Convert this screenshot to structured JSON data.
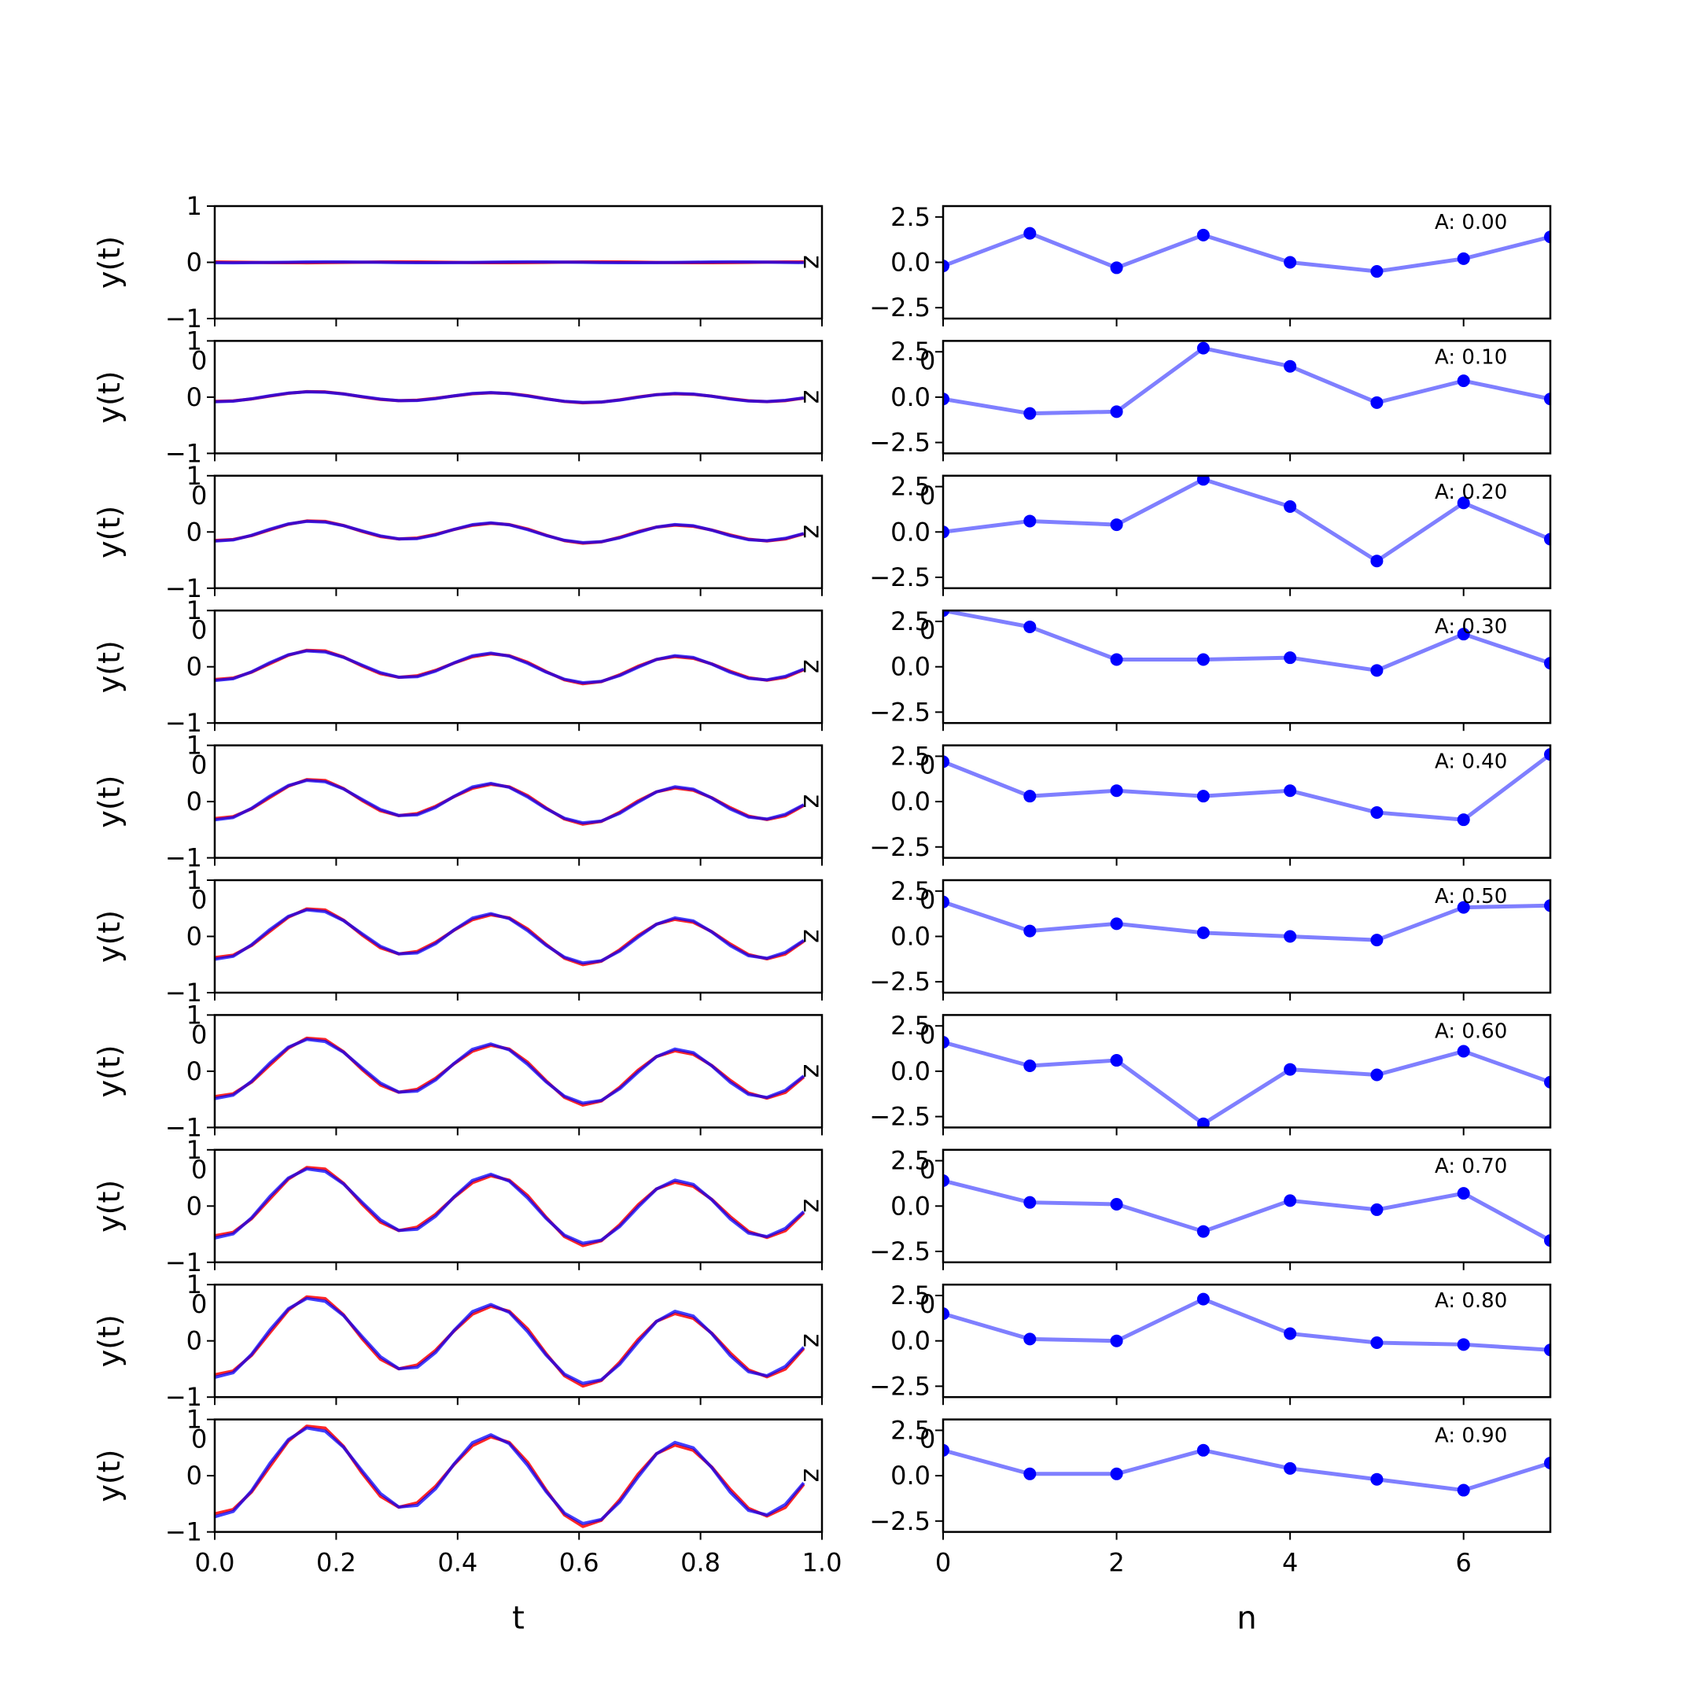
{
  "chart_data": [
    {
      "type": "line",
      "row": 0,
      "col": "left",
      "ylabel": "y(t)",
      "ylim": [
        -1,
        1
      ],
      "xlim": [
        0,
        1
      ],
      "yticks": [
        "−1",
        "0",
        "1"
      ],
      "overlap_xtick": "0",
      "side_label": "z",
      "amplitude": 0.0,
      "x_start": 0,
      "x_end": 0.97,
      "series": [
        {
          "color": "#ff0000",
          "values": [
            0.0
          ]
        },
        {
          "color": "#0000ff",
          "values": [
            0.0
          ]
        }
      ]
    },
    {
      "type": "line",
      "row": 1,
      "col": "left",
      "ylabel": "y(t)",
      "ylim": [
        -1,
        1
      ],
      "xlim": [
        0,
        1
      ],
      "yticks": [
        "−1",
        "0",
        "1"
      ],
      "overlap_xtick": "0",
      "side_label": "z",
      "amplitude": 0.1,
      "x_start": 0,
      "x_end": 0.97,
      "series": [
        {
          "color": "#ff0000"
        },
        {
          "color": "#0000ff"
        }
      ]
    },
    {
      "type": "line",
      "row": 2,
      "col": "left",
      "ylabel": "y(t)",
      "ylim": [
        -1,
        1
      ],
      "xlim": [
        0,
        1
      ],
      "yticks": [
        "−1",
        "0",
        "1"
      ],
      "overlap_xtick": "0",
      "side_label": "z",
      "amplitude": 0.2,
      "x_start": 0,
      "x_end": 0.97,
      "series": [
        {
          "color": "#ff0000"
        },
        {
          "color": "#0000ff"
        }
      ]
    },
    {
      "type": "line",
      "row": 3,
      "col": "left",
      "ylabel": "y(t)",
      "ylim": [
        -1,
        1
      ],
      "xlim": [
        0,
        1
      ],
      "yticks": [
        "−1",
        "0",
        "1"
      ],
      "overlap_xtick": "0",
      "side_label": "z",
      "amplitude": 0.3,
      "x_start": 0,
      "x_end": 0.97,
      "series": [
        {
          "color": "#ff0000"
        },
        {
          "color": "#0000ff"
        }
      ]
    },
    {
      "type": "line",
      "row": 4,
      "col": "left",
      "ylabel": "y(t)",
      "ylim": [
        -1,
        1
      ],
      "xlim": [
        0,
        1
      ],
      "yticks": [
        "−1",
        "0",
        "1"
      ],
      "overlap_xtick": "0",
      "side_label": "z",
      "amplitude": 0.4,
      "x_start": 0,
      "x_end": 0.97,
      "series": [
        {
          "color": "#ff0000"
        },
        {
          "color": "#0000ff"
        }
      ]
    },
    {
      "type": "line",
      "row": 5,
      "col": "left",
      "ylabel": "y(t)",
      "ylim": [
        -1,
        1
      ],
      "xlim": [
        0,
        1
      ],
      "yticks": [
        "−1",
        "0",
        "1"
      ],
      "overlap_xtick": "0",
      "side_label": "z",
      "amplitude": 0.5,
      "x_start": 0,
      "x_end": 0.97,
      "series": [
        {
          "color": "#ff0000"
        },
        {
          "color": "#0000ff"
        }
      ]
    },
    {
      "type": "line",
      "row": 6,
      "col": "left",
      "ylabel": "y(t)",
      "ylim": [
        -1,
        1
      ],
      "xlim": [
        0,
        1
      ],
      "yticks": [
        "−1",
        "0",
        "1"
      ],
      "overlap_xtick": "0",
      "side_label": "z",
      "amplitude": 0.6,
      "x_start": 0,
      "x_end": 0.97,
      "series": [
        {
          "color": "#ff0000"
        },
        {
          "color": "#0000ff"
        }
      ]
    },
    {
      "type": "line",
      "row": 7,
      "col": "left",
      "ylabel": "y(t)",
      "ylim": [
        -1,
        1
      ],
      "xlim": [
        0,
        1
      ],
      "yticks": [
        "−1",
        "0",
        "1"
      ],
      "overlap_xtick": "0",
      "side_label": "z",
      "amplitude": 0.7,
      "x_start": 0,
      "x_end": 0.97,
      "series": [
        {
          "color": "#ff0000"
        },
        {
          "color": "#0000ff"
        }
      ]
    },
    {
      "type": "line",
      "row": 8,
      "col": "left",
      "ylabel": "y(t)",
      "ylim": [
        -1,
        1
      ],
      "xlim": [
        0,
        1
      ],
      "yticks": [
        "−1",
        "0",
        "1"
      ],
      "overlap_xtick": "0",
      "side_label": "z",
      "amplitude": 0.8,
      "x_start": 0,
      "x_end": 0.97,
      "series": [
        {
          "color": "#ff0000"
        },
        {
          "color": "#0000ff"
        }
      ]
    },
    {
      "type": "line",
      "row": 9,
      "col": "left",
      "ylabel": "y(t)",
      "ylim": [
        -1,
        1
      ],
      "xlim": [
        0,
        1
      ],
      "yticks": [
        "−1",
        "0",
        "1"
      ],
      "overlap_xtick": "0",
      "side_label": "z",
      "amplitude": 0.9,
      "x_start": 0,
      "x_end": 0.97,
      "series": [
        {
          "color": "#ff0000"
        },
        {
          "color": "#0000ff"
        }
      ],
      "xticks": [
        "0.0",
        "0.2",
        "0.4",
        "0.6",
        "0.8",
        "1.0"
      ],
      "xlabel": "t"
    },
    {
      "type": "line",
      "row": 0,
      "col": "right",
      "annotation": "A: 0.00",
      "ylim": [
        -3.1,
        3.1
      ],
      "xlim": [
        0,
        7
      ],
      "yticks": [
        "−2.5",
        "0.0",
        "2.5"
      ],
      "overlap_xtick": "0",
      "x": [
        0,
        1,
        2,
        3,
        4,
        5,
        6,
        7
      ],
      "values": [
        -0.2,
        1.6,
        -0.3,
        1.5,
        0.0,
        -0.5,
        0.2,
        1.4
      ],
      "color": "#0000ff"
    },
    {
      "type": "line",
      "row": 1,
      "col": "right",
      "annotation": "A: 0.10",
      "ylim": [
        -3.1,
        3.1
      ],
      "xlim": [
        0,
        7
      ],
      "yticks": [
        "−2.5",
        "0.0",
        "2.5"
      ],
      "overlap_xtick": "0",
      "x": [
        0,
        1,
        2,
        3,
        4,
        5,
        6,
        7
      ],
      "values": [
        -0.1,
        -0.9,
        -0.8,
        2.7,
        1.7,
        -0.3,
        0.9,
        -0.1
      ],
      "color": "#0000ff"
    },
    {
      "type": "line",
      "row": 2,
      "col": "right",
      "annotation": "A: 0.20",
      "ylim": [
        -3.1,
        3.1
      ],
      "xlim": [
        0,
        7
      ],
      "yticks": [
        "−2.5",
        "0.0",
        "2.5"
      ],
      "overlap_xtick": "0",
      "x": [
        0,
        1,
        2,
        3,
        4,
        5,
        6,
        7
      ],
      "values": [
        0.0,
        0.6,
        0.4,
        2.9,
        1.4,
        -1.6,
        1.6,
        -0.4
      ],
      "color": "#0000ff"
    },
    {
      "type": "line",
      "row": 3,
      "col": "right",
      "annotation": "A: 0.30",
      "ylim": [
        -3.1,
        3.1
      ],
      "xlim": [
        0,
        7
      ],
      "yticks": [
        "−2.5",
        "0.0",
        "2.5"
      ],
      "overlap_xtick": "0",
      "x": [
        0,
        1,
        2,
        3,
        4,
        5,
        6,
        7
      ],
      "values": [
        3.1,
        2.2,
        0.4,
        0.4,
        0.5,
        -0.2,
        1.8,
        0.2
      ],
      "color": "#0000ff"
    },
    {
      "type": "line",
      "row": 4,
      "col": "right",
      "annotation": "A: 0.40",
      "ylim": [
        -3.1,
        3.1
      ],
      "xlim": [
        0,
        7
      ],
      "yticks": [
        "−2.5",
        "0.0",
        "2.5"
      ],
      "overlap_xtick": "0",
      "x": [
        0,
        1,
        2,
        3,
        4,
        5,
        6,
        7
      ],
      "values": [
        2.2,
        0.3,
        0.6,
        0.3,
        0.6,
        -0.6,
        -1.0,
        2.6
      ],
      "color": "#0000ff"
    },
    {
      "type": "line",
      "row": 5,
      "col": "right",
      "annotation": "A: 0.50",
      "ylim": [
        -3.1,
        3.1
      ],
      "xlim": [
        0,
        7
      ],
      "yticks": [
        "−2.5",
        "0.0",
        "2.5"
      ],
      "overlap_xtick": "0",
      "x": [
        0,
        1,
        2,
        3,
        4,
        5,
        6,
        7
      ],
      "values": [
        1.9,
        0.3,
        0.7,
        0.2,
        0.0,
        -0.2,
        1.6,
        1.7
      ],
      "color": "#0000ff"
    },
    {
      "type": "line",
      "row": 6,
      "col": "right",
      "annotation": "A: 0.60",
      "ylim": [
        -3.1,
        3.1
      ],
      "xlim": [
        0,
        7
      ],
      "yticks": [
        "−2.5",
        "0.0",
        "2.5"
      ],
      "overlap_xtick": "0",
      "x": [
        0,
        1,
        2,
        3,
        4,
        5,
        6,
        7
      ],
      "values": [
        1.6,
        0.3,
        0.6,
        -2.9,
        0.1,
        -0.2,
        1.1,
        -0.6
      ],
      "color": "#0000ff"
    },
    {
      "type": "line",
      "row": 7,
      "col": "right",
      "annotation": "A: 0.70",
      "ylim": [
        -3.1,
        3.1
      ],
      "xlim": [
        0,
        7
      ],
      "yticks": [
        "−2.5",
        "0.0",
        "2.5"
      ],
      "overlap_xtick": "0",
      "x": [
        0,
        1,
        2,
        3,
        4,
        5,
        6,
        7
      ],
      "values": [
        1.4,
        0.2,
        0.1,
        -1.4,
        0.3,
        -0.2,
        0.7,
        -1.9
      ],
      "color": "#0000ff"
    },
    {
      "type": "line",
      "row": 8,
      "col": "right",
      "annotation": "A: 0.80",
      "ylim": [
        -3.1,
        3.1
      ],
      "xlim": [
        0,
        7
      ],
      "yticks": [
        "−2.5",
        "0.0",
        "2.5"
      ],
      "overlap_xtick": "0",
      "x": [
        0,
        1,
        2,
        3,
        4,
        5,
        6,
        7
      ],
      "values": [
        1.5,
        0.1,
        0.0,
        2.3,
        0.4,
        -0.1,
        -0.2,
        -0.5
      ],
      "color": "#0000ff"
    },
    {
      "type": "line",
      "row": 9,
      "col": "right",
      "annotation": "A: 0.90",
      "ylim": [
        -3.1,
        3.1
      ],
      "xlim": [
        0,
        7
      ],
      "yticks": [
        "−2.5",
        "0.0",
        "2.5"
      ],
      "overlap_xtick": "0",
      "x": [
        0,
        1,
        2,
        3,
        4,
        5,
        6,
        7
      ],
      "values": [
        1.4,
        0.1,
        0.1,
        1.4,
        0.4,
        -0.2,
        -0.8,
        0.7
      ],
      "color": "#0000ff",
      "xticks": [
        "0",
        "2",
        "4",
        "6"
      ],
      "xtick_values": [
        0,
        2,
        4,
        6
      ],
      "xlabel": "n"
    }
  ]
}
